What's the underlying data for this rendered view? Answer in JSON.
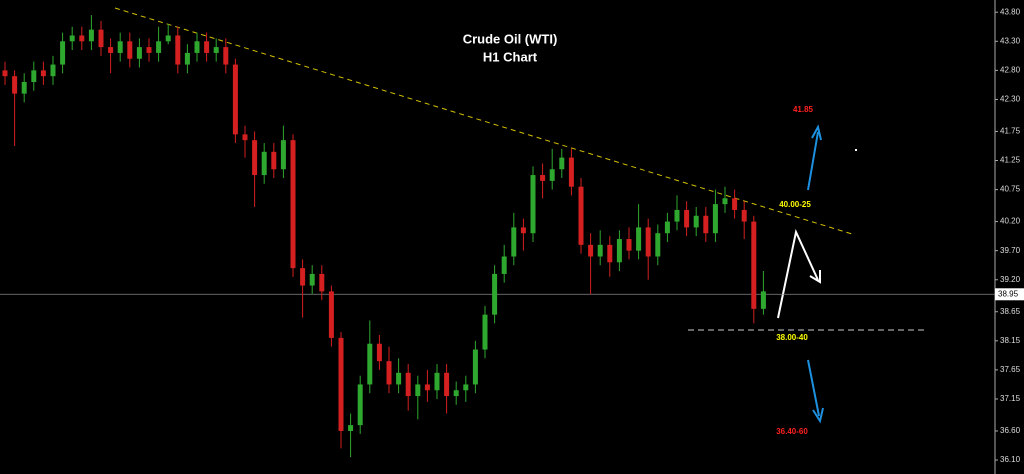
{
  "chart_data": {
    "type": "candlestick",
    "title": "Crude Oil (WTI)",
    "subtitle": "H1 Chart",
    "open": [
      42.8,
      42.7,
      42.4,
      42.6,
      42.8,
      42.7,
      42.9,
      43.3,
      43.4,
      43.3,
      43.5,
      43.2,
      43.1,
      43.3,
      43.0,
      43.2,
      43.1,
      43.3,
      43.4,
      42.9,
      43.1,
      43.3,
      43.1,
      43.2,
      42.9,
      41.7,
      41.6,
      41.0,
      41.4,
      41.1,
      41.6,
      39.4,
      39.1,
      39.3,
      39.0,
      38.2,
      36.6,
      36.7,
      37.4,
      38.1,
      37.8,
      37.4,
      37.6,
      37.2,
      37.4,
      37.3,
      37.6,
      37.2,
      37.3,
      37.4,
      38.0,
      38.6,
      39.3,
      39.6,
      40.1,
      40.0,
      41.0,
      40.9,
      41.1,
      41.3,
      40.8,
      39.8,
      39.6,
      39.8,
      39.5,
      39.9,
      39.7,
      40.1,
      39.6,
      40.0,
      40.2,
      40.4,
      40.1,
      40.3,
      40.0,
      40.5,
      40.6,
      40.4,
      40.2,
      38.7
    ],
    "high": [
      42.95,
      42.8,
      42.75,
      42.95,
      42.95,
      43.05,
      43.45,
      43.55,
      43.55,
      43.75,
      43.65,
      43.35,
      43.45,
      43.45,
      43.35,
      43.35,
      43.55,
      43.6,
      43.55,
      43.25,
      43.45,
      43.45,
      43.35,
      43.35,
      43.0,
      41.85,
      41.75,
      41.55,
      41.55,
      41.85,
      41.7,
      39.55,
      39.45,
      39.45,
      39.1,
      38.3,
      36.9,
      37.55,
      38.5,
      38.25,
      38.05,
      37.85,
      37.75,
      37.55,
      37.65,
      37.75,
      37.75,
      37.45,
      37.55,
      38.15,
      38.75,
      39.45,
      39.8,
      40.35,
      40.25,
      41.15,
      41.2,
      41.45,
      41.45,
      41.45,
      40.95,
      40.0,
      40.05,
      39.95,
      40.05,
      40.1,
      40.5,
      40.25,
      40.15,
      40.35,
      40.65,
      40.55,
      40.45,
      40.45,
      40.75,
      40.8,
      40.75,
      40.55,
      40.3,
      39.35
    ],
    "low": [
      42.55,
      41.5,
      42.25,
      42.45,
      42.55,
      42.55,
      42.75,
      43.15,
      43.15,
      43.15,
      43.05,
      42.75,
      42.95,
      42.85,
      42.85,
      42.95,
      42.95,
      43.25,
      42.75,
      42.75,
      42.95,
      42.95,
      42.95,
      42.75,
      41.55,
      41.3,
      40.45,
      40.85,
      40.95,
      40.95,
      39.25,
      38.55,
      38.95,
      38.85,
      38.05,
      36.3,
      36.15,
      36.55,
      37.25,
      37.65,
      37.25,
      37.25,
      36.95,
      36.8,
      37.1,
      37.15,
      36.9,
      37.05,
      37.1,
      37.25,
      37.85,
      38.45,
      39.15,
      39.45,
      39.7,
      39.85,
      40.6,
      40.75,
      40.95,
      40.65,
      39.65,
      38.95,
      39.45,
      39.25,
      39.35,
      39.55,
      39.55,
      39.2,
      39.45,
      39.85,
      40.05,
      39.95,
      39.95,
      39.85,
      39.85,
      40.35,
      40.25,
      39.9,
      38.45,
      38.6
    ],
    "close": [
      42.7,
      42.4,
      42.6,
      42.8,
      42.7,
      42.9,
      43.3,
      43.4,
      43.3,
      43.5,
      43.2,
      43.1,
      43.3,
      43.0,
      43.2,
      43.1,
      43.3,
      43.4,
      42.9,
      43.1,
      43.3,
      43.1,
      43.2,
      42.9,
      41.7,
      41.6,
      41.0,
      41.4,
      41.1,
      41.6,
      39.4,
      39.1,
      39.3,
      39.0,
      38.2,
      36.6,
      36.7,
      37.4,
      38.1,
      37.8,
      37.4,
      37.6,
      37.2,
      37.4,
      37.3,
      37.6,
      37.2,
      37.3,
      37.4,
      38.0,
      38.6,
      39.3,
      39.6,
      40.1,
      40.0,
      41.0,
      40.9,
      41.1,
      41.3,
      40.8,
      39.8,
      39.6,
      39.8,
      39.5,
      39.9,
      39.7,
      40.1,
      39.6,
      40.0,
      40.2,
      40.4,
      40.1,
      40.3,
      40.0,
      40.5,
      40.6,
      40.4,
      40.2,
      38.7,
      39.0
    ],
    "up_color": "#2fa82f",
    "down_color": "#d42020",
    "ylim": [
      35.86,
      44.01
    ],
    "yticks": [
      {
        "value": 43.8,
        "label": "43.80"
      },
      {
        "value": 43.3,
        "label": "43.30"
      },
      {
        "value": 42.8,
        "label": "42.80"
      },
      {
        "value": 42.3,
        "label": "42.30"
      },
      {
        "value": 41.75,
        "label": "41.75"
      },
      {
        "value": 41.25,
        "label": "41.25"
      },
      {
        "value": 40.75,
        "label": "40.75"
      },
      {
        "value": 40.2,
        "label": "40.20"
      },
      {
        "value": 39.7,
        "label": "39.70"
      },
      {
        "value": 39.2,
        "label": "39.20"
      },
      {
        "value": 38.65,
        "label": "38.65"
      },
      {
        "value": 38.15,
        "label": "38.15"
      },
      {
        "value": 37.65,
        "label": "37.65"
      },
      {
        "value": 37.15,
        "label": "37.15"
      },
      {
        "value": 36.6,
        "label": "36.60"
      },
      {
        "value": 36.1,
        "label": "36.10"
      }
    ],
    "last_price": 38.95,
    "annotations": [
      {
        "text": "41.85",
        "color": "#ff2020"
      },
      {
        "text": "40.00-25",
        "color": "#ffff00"
      },
      {
        "text": "38.00-40",
        "color": "#ffff00"
      },
      {
        "text": "36.40-60",
        "color": "#ff2020"
      }
    ]
  }
}
